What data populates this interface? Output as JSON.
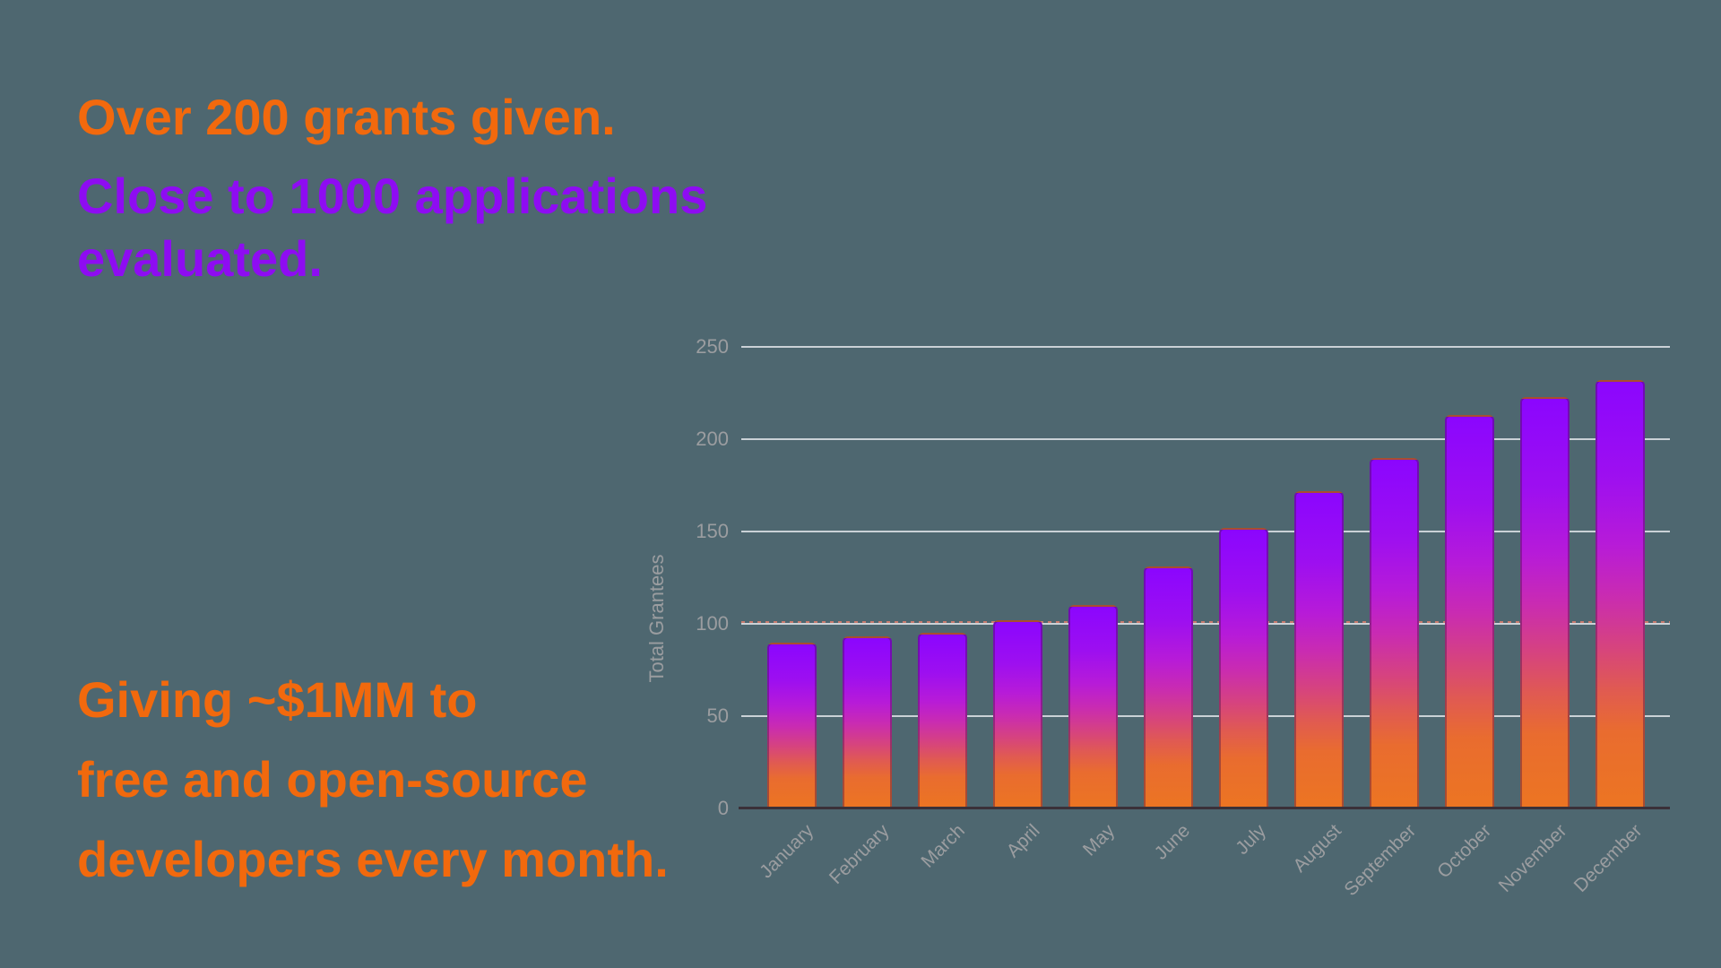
{
  "page": {
    "background_color": "#4E6770"
  },
  "headline": {
    "orange_line": "Over 200 grants given.",
    "orange_color": "#F2690D",
    "purple_lines": [
      "Close to 1000 applications",
      "evaluated."
    ],
    "purple_color": "#8E0CF2"
  },
  "footline": {
    "color": "#F2690D",
    "lines": [
      "Giving ~$1MM to",
      "free and open-source",
      "developers every month."
    ]
  },
  "chart_data": {
    "type": "bar",
    "title": "",
    "xlabel": "",
    "ylabel": "Total Grantees",
    "categories": [
      "January",
      "February",
      "March",
      "April",
      "May",
      "June",
      "July",
      "August",
      "September",
      "October",
      "November",
      "December"
    ],
    "values": [
      90,
      93,
      95,
      102,
      110,
      131,
      152,
      172,
      190,
      213,
      223,
      232
    ],
    "series_name": "Total Grantees",
    "ylim": [
      0,
      260
    ],
    "yticks": [
      "0",
      "50",
      "100",
      "150",
      "200",
      "250"
    ],
    "grid": "horizontal",
    "legend": "none",
    "annotation_line": {
      "y": 101,
      "style": "dashed",
      "color": "#C97C6F"
    },
    "colors": {
      "gridline": "#E0E4E7",
      "axis_line": "#3A3139",
      "tick_text": "#9B9DA0",
      "bar_gradient_top_to_bottom": [
        {
          "color": "#8B06FE",
          "pos": 0
        },
        {
          "color": "#9D0FF0",
          "pos": 22
        },
        {
          "color": "#B71BD8",
          "pos": 38
        },
        {
          "color": "#C92BB2",
          "pos": 50
        },
        {
          "color": "#D6437F",
          "pos": 62
        },
        {
          "color": "#E05A52",
          "pos": 72
        },
        {
          "color": "#E96C2F",
          "pos": 82
        },
        {
          "color": "#EC7522",
          "pos": 100
        }
      ]
    }
  }
}
